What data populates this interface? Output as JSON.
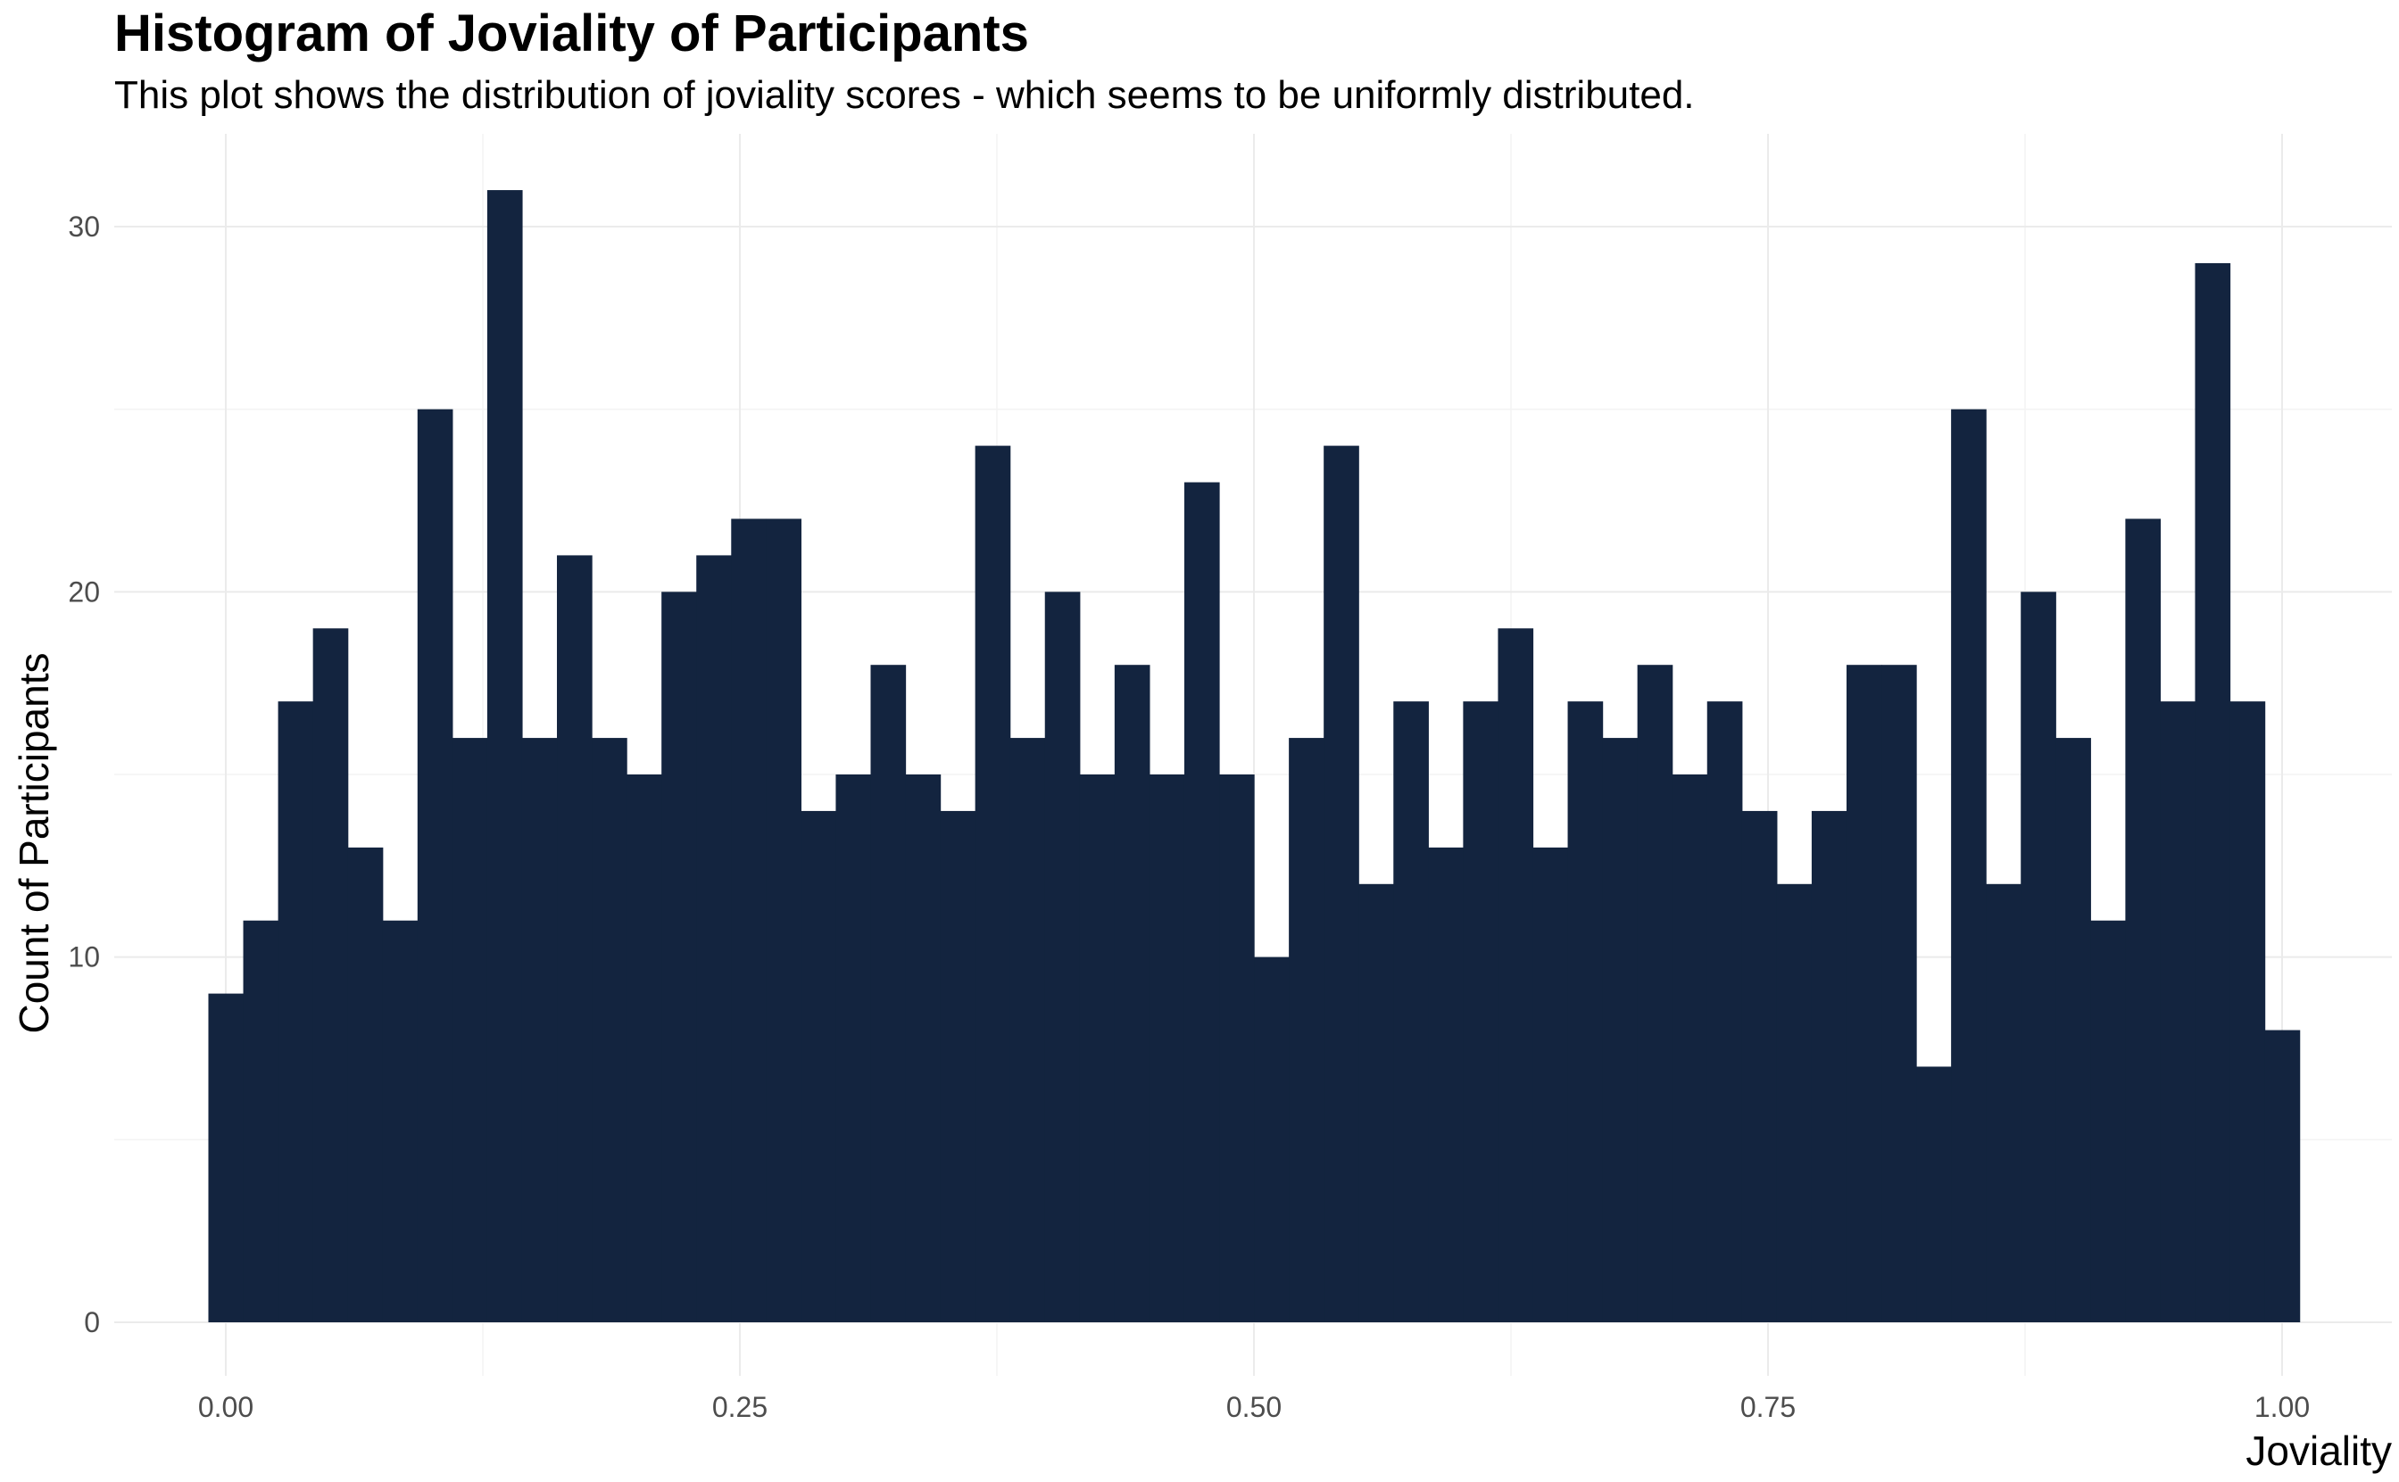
{
  "chart_data": {
    "type": "bar",
    "title": "Histogram of Joviality of Participants",
    "subtitle": "This plot shows the distribution of joviality scores - which seems to be uniformly distributed.",
    "xlabel": "Joviality",
    "ylabel": "Count of Participants",
    "xlim": [
      -0.02,
      1.02
    ],
    "ylim": [
      0,
      32
    ],
    "x_ticks": [
      0,
      0.25,
      0.5,
      0.75,
      1.0
    ],
    "x_tick_labels": [
      "0.00",
      "0.25",
      "0.50",
      "0.75",
      "1.00"
    ],
    "y_ticks": [
      0,
      10,
      20,
      30
    ],
    "y_tick_labels": [
      "0",
      "10",
      "20",
      "30"
    ],
    "grid": true,
    "bar_color": "#13243f",
    "bin_start": -0.00847,
    "bin_width": 0.01695,
    "values": [
      9,
      11,
      17,
      19,
      13,
      11,
      25,
      16,
      31,
      16,
      21,
      16,
      15,
      20,
      21,
      22,
      22,
      14,
      15,
      18,
      15,
      14,
      24,
      16,
      20,
      15,
      18,
      15,
      23,
      15,
      10,
      16,
      24,
      12,
      17,
      13,
      17,
      19,
      13,
      17,
      16,
      18,
      15,
      17,
      14,
      12,
      14,
      18,
      18,
      7,
      25,
      12,
      20,
      16,
      11,
      22,
      17,
      29,
      17,
      8
    ]
  }
}
